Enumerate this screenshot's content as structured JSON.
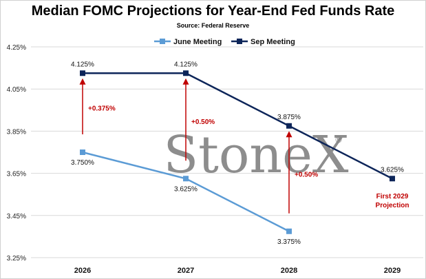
{
  "title": "Median FOMC Projections for Year-End Fed Funds Rate",
  "subtitle": "Source: Federal Reserve",
  "watermark": "StoneX",
  "watermark_mark": "®",
  "colors": {
    "june": "#5b9bd5",
    "sep": "#0d2559",
    "annotation": "#c00000",
    "grid": "#d9d9d9"
  },
  "chart_data": {
    "type": "line",
    "categories": [
      "2026",
      "2027",
      "2028",
      "2029"
    ],
    "ylim": [
      3.25,
      4.25
    ],
    "yticks": [
      {
        "v": 3.25,
        "label": "3.25%"
      },
      {
        "v": 3.45,
        "label": "3.45%"
      },
      {
        "v": 3.65,
        "label": "3.65%"
      },
      {
        "v": 3.85,
        "label": "3.85%"
      },
      {
        "v": 4.05,
        "label": "4.05%"
      },
      {
        "v": 4.25,
        "label": "4.25%"
      }
    ],
    "grid": "horizontal",
    "legend": "top-center",
    "series": [
      {
        "name": "June Meeting",
        "values": [
          3.75,
          3.625,
          3.375,
          null
        ],
        "labels": [
          "3.750%",
          "3.625%",
          "3.375%",
          null
        ]
      },
      {
        "name": "Sep Meeting",
        "values": [
          4.125,
          4.125,
          3.875,
          3.625
        ],
        "labels": [
          "4.125%",
          "4.125%",
          "3.875%",
          "3.625%"
        ]
      }
    ],
    "annotations": [
      {
        "category": "2026",
        "from": 3.75,
        "to": 4.125,
        "text": "+0.375%"
      },
      {
        "category": "2027",
        "from": 3.625,
        "to": 4.125,
        "text": "+0.50%"
      },
      {
        "category": "2028",
        "from": 3.375,
        "to": 3.875,
        "text": "+0.50%"
      }
    ],
    "note": {
      "category": "2029",
      "lines": [
        "First 2029",
        "Projection"
      ]
    }
  }
}
